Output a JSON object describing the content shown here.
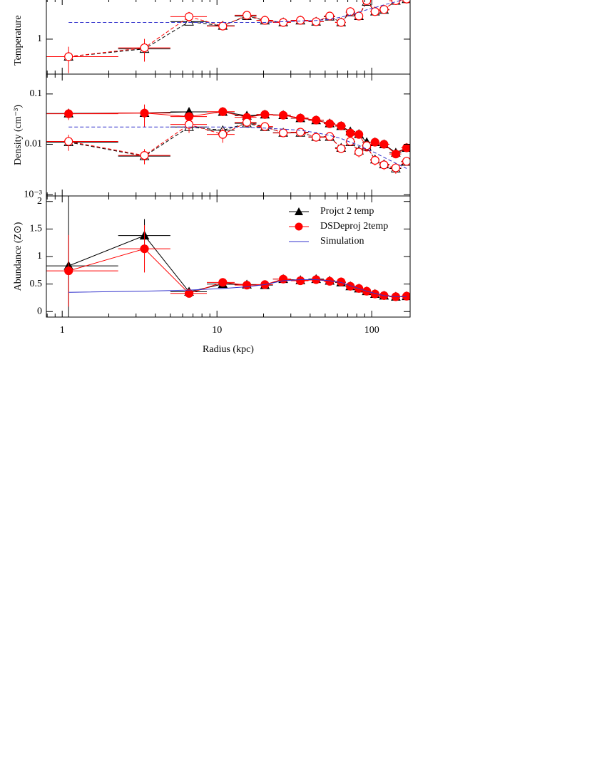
{
  "chart_data": [
    {
      "type": "line",
      "ylabel": "Temperature",
      "ylog": true,
      "ylim": [
        0.25,
        5.0
      ],
      "yticks": [
        1
      ],
      "xlim": [
        0.79,
        177
      ],
      "xticks": [
        1,
        10,
        100
      ],
      "xminor": [
        0.8,
        0.9,
        2,
        3,
        4,
        5,
        6,
        7,
        8,
        9,
        20,
        30,
        40,
        50,
        60,
        70,
        80,
        90
      ],
      "x": [
        1.1,
        3.4,
        6.6,
        10.9,
        15.6,
        20.4,
        26.8,
        34.6,
        43.7,
        53.5,
        63.4,
        72.7,
        82.6,
        92.8,
        105,
        120,
        143,
        168
      ],
      "x_bins": [
        0.79,
        2.3,
        5.0,
        8.6,
        13,
        18,
        23,
        30,
        39,
        49,
        58,
        68,
        78,
        87,
        98,
        112,
        130,
        155,
        177
      ],
      "series": [
        {
          "legend": 0,
          "filled": false,
          "dashed": true,
          "xerr": true,
          "values": [
            0.5,
            0.68,
            2.0,
            1.7,
            2.5,
            2.1,
            1.95,
            2.1,
            2.0,
            2.45,
            1.95,
            2.9,
            2.5,
            4.4,
            3.0,
            3.2,
            4.6,
            4.9
          ]
        },
        {
          "legend": 1,
          "filled": false,
          "dashed": true,
          "xerr": true,
          "values": [
            0.5,
            0.71,
            2.44,
            1.68,
            2.58,
            2.11,
            1.94,
            2.11,
            2.0,
            2.5,
            1.94,
            2.98,
            2.5,
            4.6,
            2.98,
            3.25,
            4.6,
            4.9
          ],
          "errors": [
            0.24,
            0.3,
            0.5,
            0.25,
            0.2,
            0.1,
            0.15,
            0.1,
            0.1,
            0.15,
            0.2,
            0.3,
            0.3,
            0.6,
            0.3,
            0.3,
            0.4,
            0.4
          ]
        },
        {
          "legend": 2,
          "dashed": true,
          "values": [
            1.94,
            1.94,
            1.94,
            1.94,
            1.94,
            1.94,
            2.0,
            2.05,
            2.1,
            2.2,
            2.4,
            2.6,
            2.9,
            3.2,
            3.5,
            3.9,
            4.4,
            5.0
          ]
        }
      ]
    },
    {
      "type": "line",
      "ylabel": "Density (cm⁻³)",
      "ylog": true,
      "ylim": [
        0.00094,
        0.248
      ],
      "yticks": [
        0.1,
        0.01,
        {
          "value": 0.001,
          "label": "10⁻³"
        }
      ],
      "xlim": [
        0.79,
        177
      ],
      "xticks": [
        1,
        10,
        100
      ],
      "xminor": [
        0.8,
        0.9,
        2,
        3,
        4,
        5,
        6,
        7,
        8,
        9,
        20,
        30,
        40,
        50,
        60,
        70,
        80,
        90
      ],
      "x": [
        1.1,
        3.4,
        6.6,
        10.9,
        15.6,
        20.4,
        26.8,
        34.6,
        43.7,
        53.5,
        63.4,
        72.7,
        82.6,
        92.8,
        105,
        120,
        143,
        168
      ],
      "x_bins": [
        0.79,
        2.3,
        5.0,
        8.6,
        13,
        18,
        23,
        30,
        39,
        49,
        58,
        68,
        78,
        87,
        98,
        112,
        130,
        155,
        177
      ],
      "series": [
        {
          "legend": 0,
          "filled": true,
          "dashed": false,
          "xerr": true,
          "values": [
            0.041,
            0.042,
            0.044,
            0.044,
            0.037,
            0.039,
            0.038,
            0.033,
            0.03,
            0.026,
            0.023,
            0.018,
            0.016,
            0.011,
            0.011,
            0.01,
            0.0068,
            0.0085
          ]
        },
        {
          "legend": 1,
          "filled": true,
          "dashed": false,
          "xerr": true,
          "values": [
            0.0404,
            0.0417,
            0.0355,
            0.0444,
            0.0343,
            0.039,
            0.0378,
            0.0332,
            0.0302,
            0.0256,
            0.0232,
            0.0168,
            0.0157,
            0.0088,
            0.011,
            0.01,
            0.0064,
            0.0085
          ],
          "errors": [
            0.01,
            0.02,
            0.006,
            0.003,
            0.004,
            0.002,
            0.002,
            0.002,
            0.002,
            0.002,
            0.002,
            0.002,
            0.002,
            0.0015,
            0.001,
            0.001,
            0.001,
            0.0012
          ]
        },
        {
          "legend": 0,
          "filled": false,
          "dashed": true,
          "xerr": true,
          "values": [
            0.011,
            0.0058,
            0.022,
            0.019,
            0.026,
            0.022,
            0.017,
            0.017,
            0.014,
            0.014,
            0.0085,
            0.011,
            0.0075,
            0.009,
            0.005,
            0.004,
            0.0033,
            0.0045
          ]
        },
        {
          "legend": 1,
          "filled": false,
          "dashed": true,
          "xerr": true,
          "values": [
            0.0114,
            0.006,
            0.0248,
            0.0157,
            0.0273,
            0.0225,
            0.0168,
            0.0174,
            0.0138,
            0.0143,
            0.0082,
            0.0114,
            0.007,
            0.0094,
            0.0048,
            0.0039,
            0.0034,
            0.0046
          ],
          "errors": [
            0.004,
            0.002,
            0.008,
            0.005,
            0.004,
            0.003,
            0.002,
            0.002,
            0.002,
            0.002,
            0.0015,
            0.002,
            0.0015,
            0.002,
            0.001,
            0.0008,
            0.0008,
            0.0008
          ]
        },
        {
          "legend": 2,
          "dashed": true,
          "values": [
            0.022,
            0.022,
            0.022,
            0.022,
            0.0218,
            0.021,
            0.02,
            0.019,
            0.017,
            0.015,
            0.013,
            0.011,
            0.0095,
            0.008,
            0.0068,
            0.0055,
            0.0042,
            0.0033
          ]
        }
      ]
    },
    {
      "type": "line",
      "ylabel": "Abundance (Z⊙)",
      "ylog": false,
      "ylim": [
        -0.1,
        2.1
      ],
      "yticks": [
        0,
        0.5,
        1,
        1.5,
        2
      ],
      "xlim": [
        0.79,
        177
      ],
      "xticks": [
        1,
        10,
        100
      ],
      "xminor": [
        0.8,
        0.9,
        2,
        3,
        4,
        5,
        6,
        7,
        8,
        9,
        20,
        30,
        40,
        50,
        60,
        70,
        80,
        90
      ],
      "xlabel": "Radius (kpc)",
      "x": [
        1.1,
        3.4,
        6.6,
        10.9,
        15.6,
        20.4,
        26.8,
        34.6,
        43.7,
        53.5,
        63.4,
        72.7,
        82.6,
        92.8,
        105,
        120,
        143,
        168
      ],
      "x_bins": [
        0.79,
        2.3,
        5.0,
        8.6,
        13,
        18,
        23,
        30,
        39,
        49,
        58,
        68,
        78,
        87,
        98,
        112,
        130,
        155,
        177
      ],
      "legend": {
        "corner": "upper right",
        "entries": [
          {
            "name": "Projct 2 temp",
            "color": "#000000",
            "marker": "triangle"
          },
          {
            "name": "DSDeproj 2temp",
            "color": "#ff0000",
            "marker": "circle"
          },
          {
            "name": "Simulation",
            "color": "#3333cc",
            "marker": "none"
          }
        ]
      },
      "series": [
        {
          "legend": 0,
          "filled": true,
          "dashed": false,
          "xerr": true,
          "values": [
            0.83,
            1.38,
            0.36,
            0.5,
            0.49,
            0.48,
            0.59,
            0.57,
            0.59,
            0.56,
            0.53,
            0.46,
            0.42,
            0.37,
            0.32,
            0.29,
            0.27,
            0.28
          ],
          "errors": [
            1.3,
            0.3,
            0.03,
            0.03,
            0.03,
            0.03,
            0.02,
            0.02,
            0.02,
            0.02,
            0.02,
            0.02,
            0.02,
            0.02,
            0.02,
            0.02,
            0.02,
            0.02
          ]
        },
        {
          "legend": 1,
          "filled": true,
          "dashed": false,
          "xerr": true,
          "values": [
            0.74,
            1.14,
            0.33,
            0.53,
            0.48,
            0.49,
            0.59,
            0.56,
            0.58,
            0.55,
            0.54,
            0.46,
            0.42,
            0.37,
            0.32,
            0.29,
            0.27,
            0.28
          ],
          "errors": [
            0.65,
            0.43,
            0.04,
            0.04,
            0.03,
            0.03,
            0.02,
            0.02,
            0.02,
            0.02,
            0.02,
            0.02,
            0.02,
            0.02,
            0.02,
            0.02,
            0.02,
            0.02
          ]
        },
        {
          "legend": 2,
          "dashed": false,
          "values": [
            0.35,
            0.37,
            0.39,
            0.42,
            0.45,
            0.49,
            0.56,
            0.58,
            0.58,
            0.56,
            0.53,
            0.47,
            0.42,
            0.37,
            0.33,
            0.29,
            0.27,
            0.27
          ]
        }
      ]
    }
  ]
}
